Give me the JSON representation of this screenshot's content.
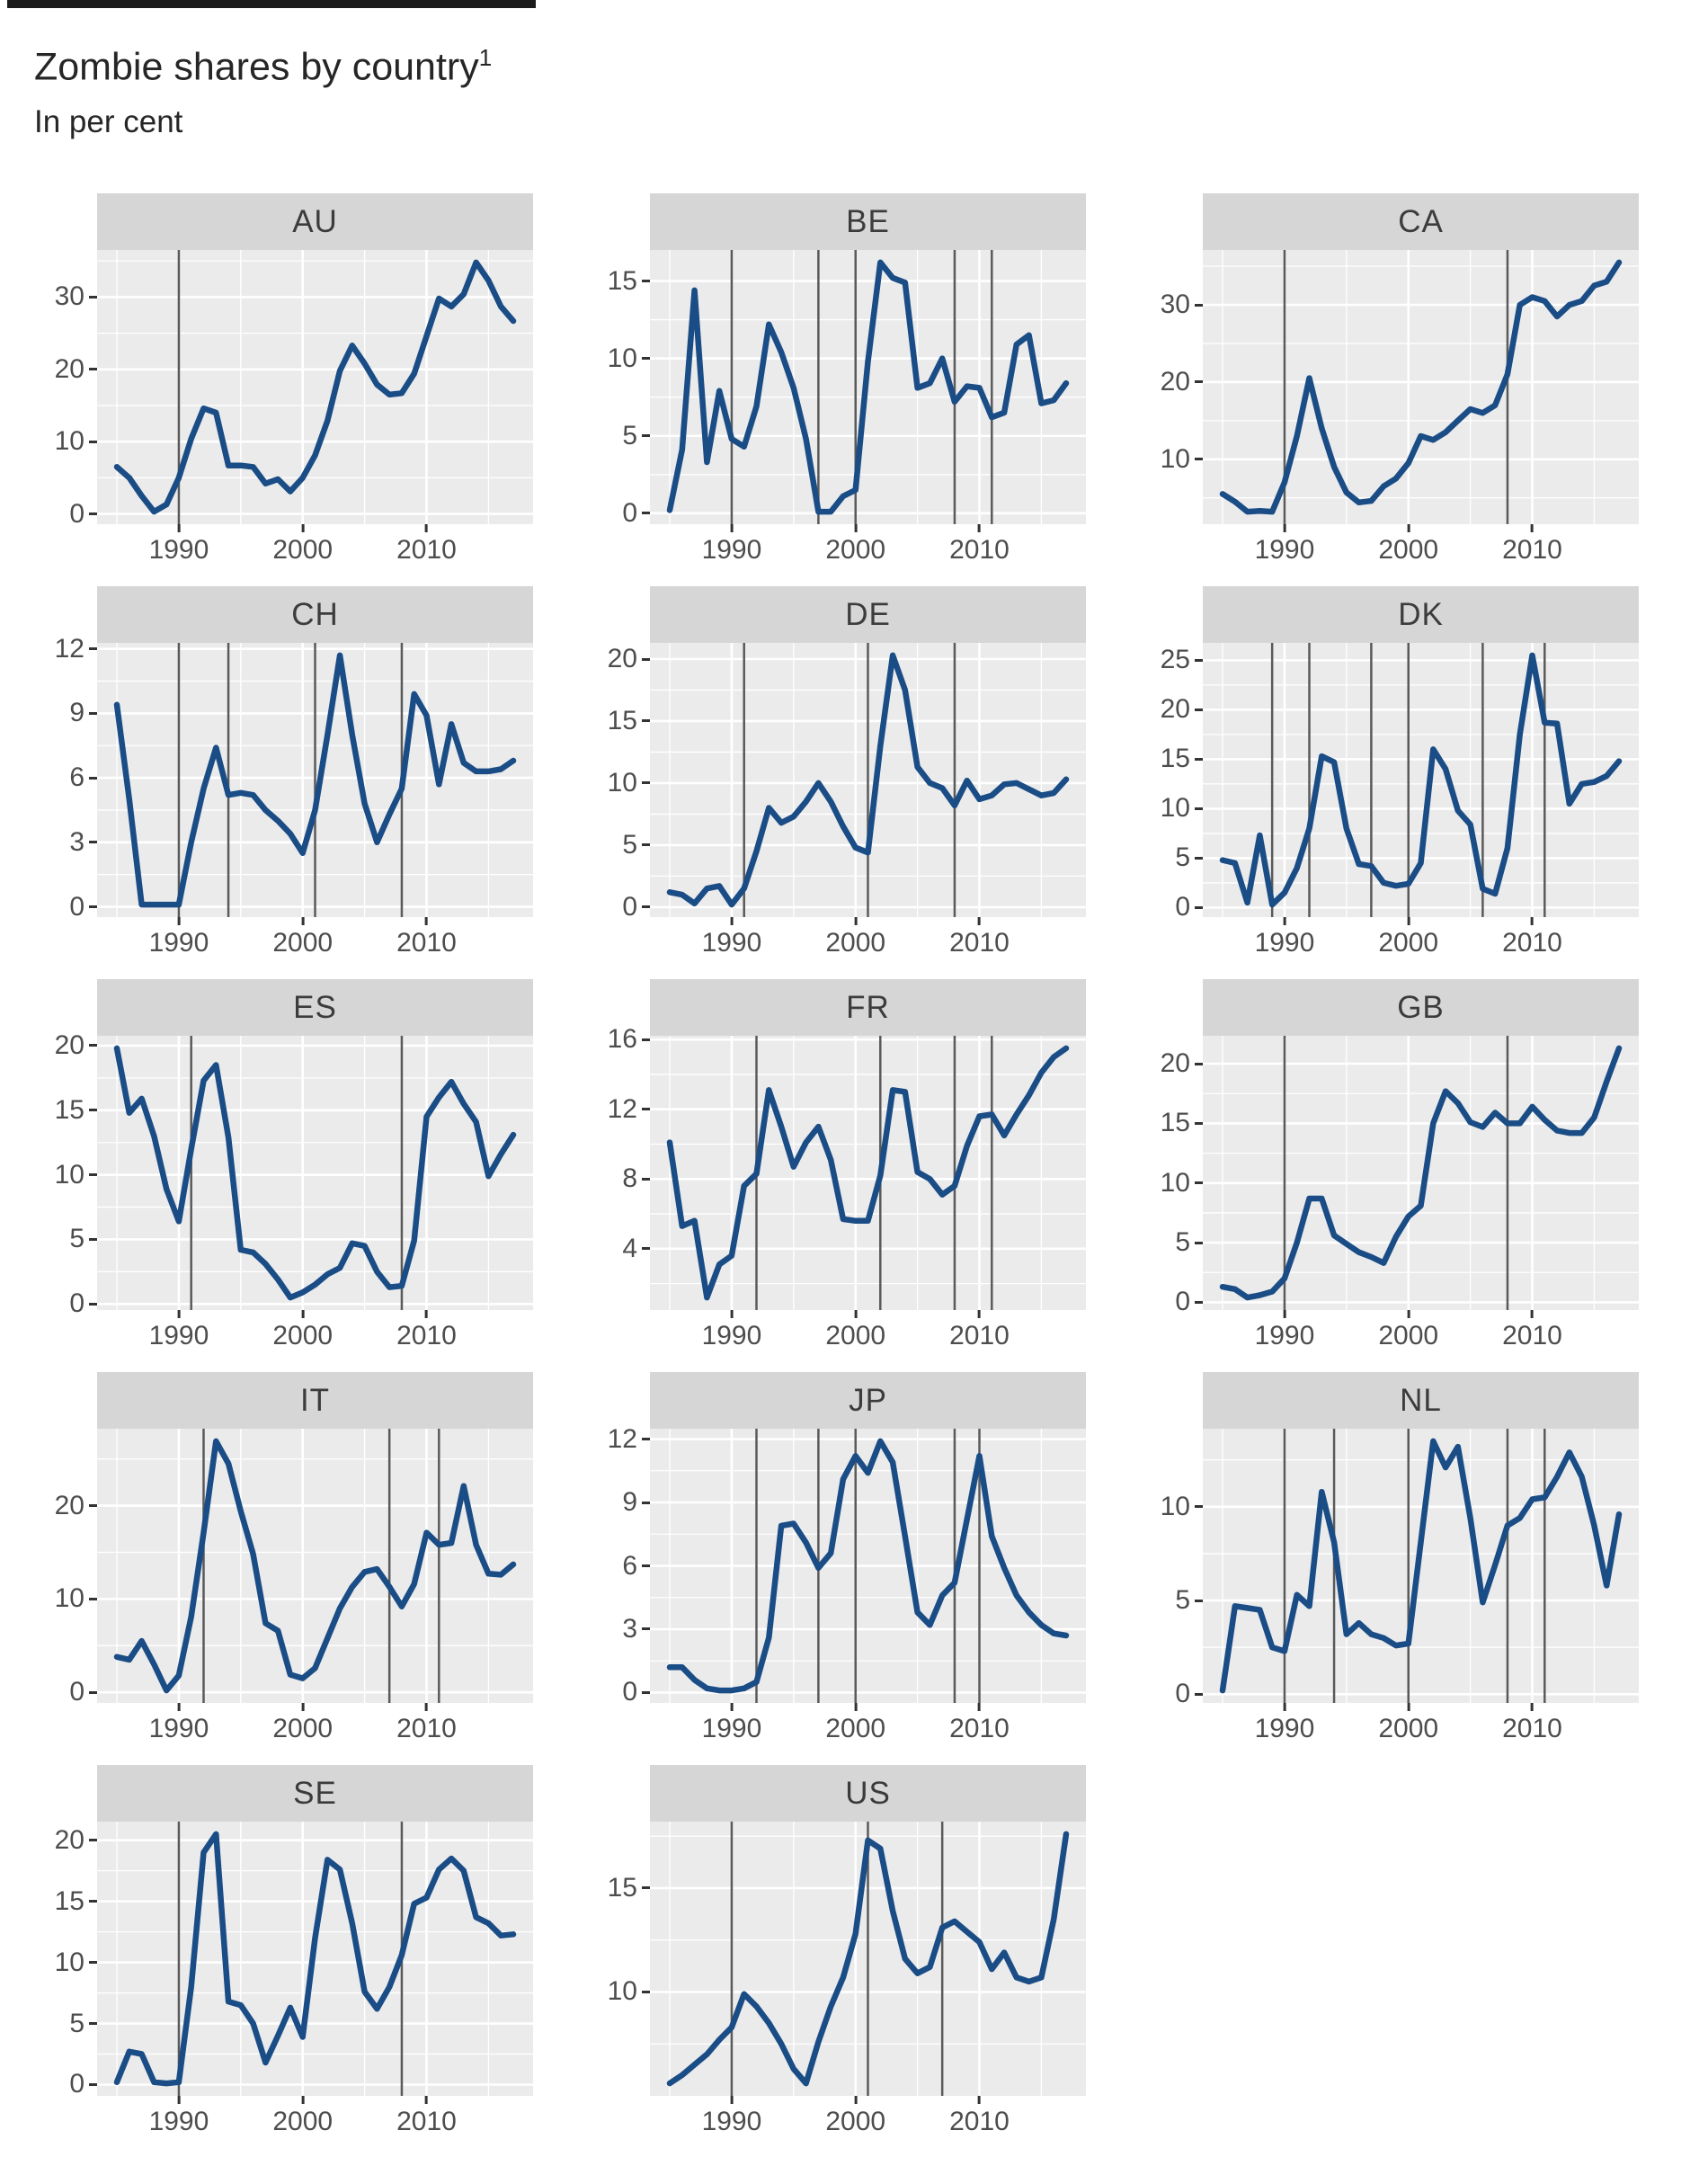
{
  "header": {
    "title": "Zombie shares by country",
    "footnote_marker": "1",
    "subtitle": "In per cent"
  },
  "style": {
    "line_color": "#1a4c86",
    "panel_bg": "#ebebeb",
    "strip_bg": "#d6d6d6",
    "grid_color": "#ffffff",
    "refline_color": "#5a5a5a",
    "tick_text_color": "#4d4d4d"
  },
  "axes": {
    "x_domain": [
      1985,
      2017
    ],
    "x_ticks": [
      1990,
      2000,
      2010
    ],
    "x_minor": [
      1985,
      1995,
      2005,
      2015
    ],
    "expansion": 0.05
  },
  "chart_data": [
    {
      "type": "line",
      "title": "AU",
      "x_start": 1985,
      "x_end": 2017,
      "y_ticks": [
        0,
        10,
        20,
        30
      ],
      "vlines": [
        1990
      ],
      "values": [
        6.5,
        5,
        2.5,
        0.3,
        1.3,
        5,
        10.4,
        14.6,
        14,
        6.7,
        6.7,
        6.5,
        4.2,
        4.8,
        3.1,
        5,
        8.1,
        12.9,
        19.8,
        23.3,
        20.8,
        17.9,
        16.5,
        16.7,
        19.4,
        24.6,
        29.8,
        28.7,
        30.4,
        34.8,
        32.3,
        28.7,
        26.7
      ]
    },
    {
      "type": "line",
      "title": "BE",
      "x_start": 1985,
      "x_end": 2017,
      "y_ticks": [
        0,
        5,
        10,
        15
      ],
      "vlines": [
        1990,
        1997,
        2000,
        2008,
        2011
      ],
      "values": [
        0.2,
        4.1,
        14.4,
        3.3,
        7.9,
        4.8,
        4.3,
        6.9,
        12.2,
        10.4,
        8.1,
        4.8,
        0.1,
        0.1,
        1.1,
        1.5,
        9.8,
        16.2,
        15.2,
        14.9,
        8.1,
        8.4,
        10,
        7.2,
        8.2,
        8.1,
        6.2,
        6.5,
        10.9,
        11.5,
        7.1,
        7.3,
        8.4
      ]
    },
    {
      "type": "line",
      "title": "CA",
      "x_start": 1985,
      "x_end": 2017,
      "y_ticks": [
        10,
        20,
        30
      ],
      "vlines": [
        1990,
        2008
      ],
      "values": [
        5.5,
        4.5,
        3.2,
        3.3,
        3.2,
        7,
        13,
        20.5,
        14,
        9,
        5.7,
        4.4,
        4.6,
        6.5,
        7.5,
        9.5,
        13,
        12.5,
        13.5,
        15,
        16.5,
        16,
        17,
        21,
        30,
        31,
        30.5,
        28.5,
        30,
        30.5,
        32.5,
        33,
        35.5
      ]
    },
    {
      "type": "line",
      "title": "CH",
      "x_start": 1985,
      "x_end": 2017,
      "y_ticks": [
        0,
        3,
        6,
        9,
        12
      ],
      "vlines": [
        1990,
        1994,
        2001,
        2008
      ],
      "values": [
        9.4,
        5,
        0.1,
        0.1,
        0.1,
        0.1,
        3,
        5.5,
        7.4,
        5.2,
        5.3,
        5.2,
        4.5,
        4,
        3.4,
        2.5,
        4.5,
        8,
        11.7,
        8,
        4.8,
        3,
        4.3,
        5.5,
        9.9,
        8.9,
        5.7,
        8.5,
        6.7,
        6.3,
        6.3,
        6.4,
        6.8
      ]
    },
    {
      "type": "line",
      "title": "DE",
      "x_start": 1985,
      "x_end": 2017,
      "y_ticks": [
        0,
        5,
        10,
        15,
        20
      ],
      "vlines": [
        1991,
        2001,
        2008
      ],
      "values": [
        1.2,
        1,
        0.3,
        1.5,
        1.7,
        0.2,
        1.5,
        4.5,
        8,
        6.8,
        7.3,
        8.5,
        10,
        8.5,
        6.5,
        4.8,
        4.4,
        13,
        20.3,
        17.5,
        11.3,
        10,
        9.6,
        8.2,
        10.2,
        8.7,
        9,
        9.9,
        10,
        9.5,
        9,
        9.2,
        10.3
      ]
    },
    {
      "type": "line",
      "title": "DK",
      "x_start": 1985,
      "x_end": 2017,
      "y_ticks": [
        0,
        5,
        10,
        15,
        20,
        25
      ],
      "vlines": [
        1989,
        1992,
        1997,
        2000,
        2006,
        2011
      ],
      "values": [
        4.8,
        4.5,
        0.5,
        7.3,
        0.3,
        1.5,
        4,
        8,
        15.3,
        14.7,
        8,
        4.4,
        4.2,
        2.5,
        2.2,
        2.4,
        4.5,
        16,
        14,
        9.8,
        8.4,
        1.9,
        1.4,
        6,
        17.5,
        25.5,
        18.7,
        18.6,
        10.5,
        12.5,
        12.7,
        13.3,
        14.8
      ]
    },
    {
      "type": "line",
      "title": "ES",
      "x_start": 1985,
      "x_end": 2017,
      "y_ticks": [
        0,
        5,
        10,
        15,
        20
      ],
      "vlines": [
        1991,
        2008
      ],
      "values": [
        19.8,
        14.8,
        15.9,
        13,
        8.9,
        6.4,
        12,
        17.3,
        18.5,
        12.9,
        4.2,
        4,
        3.1,
        1.9,
        0.5,
        0.9,
        1.5,
        2.3,
        2.8,
        4.7,
        4.5,
        2.5,
        1.3,
        1.4,
        4.9,
        14.5,
        16,
        17.2,
        15.5,
        14.1,
        9.9,
        11.6,
        13.1
      ]
    },
    {
      "type": "line",
      "title": "FR",
      "x_start": 1985,
      "x_end": 2017,
      "y_ticks": [
        4,
        8,
        12,
        16
      ],
      "vlines": [
        1992,
        2002,
        2008,
        2011
      ],
      "values": [
        10.1,
        5.3,
        5.6,
        1.2,
        3.1,
        3.6,
        7.6,
        8.3,
        13.1,
        11,
        8.7,
        10.1,
        11,
        9.1,
        5.7,
        5.6,
        5.6,
        8.2,
        13.1,
        13,
        8.4,
        8,
        7.1,
        7.6,
        9.9,
        11.6,
        11.7,
        10.5,
        11.7,
        12.8,
        14.1,
        15,
        15.5
      ]
    },
    {
      "type": "line",
      "title": "GB",
      "x_start": 1985,
      "x_end": 2017,
      "y_ticks": [
        0,
        5,
        10,
        15,
        20
      ],
      "vlines": [
        1990,
        2008
      ],
      "values": [
        1.3,
        1.1,
        0.4,
        0.6,
        0.9,
        2,
        5,
        8.7,
        8.7,
        5.6,
        4.9,
        4.2,
        3.8,
        3.3,
        5.5,
        7.2,
        8.1,
        15,
        17.7,
        16.7,
        15.1,
        14.7,
        15.9,
        15,
        15,
        16.4,
        15.3,
        14.4,
        14.2,
        14.2,
        15.5,
        18.5,
        21.3
      ]
    },
    {
      "type": "line",
      "title": "IT",
      "x_start": 1985,
      "x_end": 2017,
      "y_ticks": [
        0,
        10,
        20
      ],
      "vlines": [
        1992,
        2007,
        2011
      ],
      "values": [
        3.8,
        3.5,
        5.5,
        3,
        0.2,
        1.8,
        8.1,
        17.1,
        26.9,
        24.5,
        19.4,
        14.8,
        7.4,
        6.6,
        1.9,
        1.5,
        2.6,
        5.8,
        9,
        11.3,
        12.9,
        13.2,
        11.3,
        9.2,
        11.6,
        17.1,
        15.8,
        16,
        22.1,
        15.8,
        12.7,
        12.6,
        13.7
      ]
    },
    {
      "type": "line",
      "title": "JP",
      "x_start": 1985,
      "x_end": 2017,
      "y_ticks": [
        0,
        3,
        6,
        9,
        12
      ],
      "vlines": [
        1992,
        1997,
        2000,
        2008,
        2010
      ],
      "values": [
        1.2,
        1.2,
        0.6,
        0.2,
        0.1,
        0.1,
        0.2,
        0.5,
        2.6,
        7.9,
        8,
        7.1,
        5.9,
        6.6,
        10.1,
        11.2,
        10.4,
        11.9,
        10.9,
        7.4,
        3.8,
        3.2,
        4.6,
        5.2,
        8.2,
        11.2,
        7.4,
        5.9,
        4.6,
        3.8,
        3.2,
        2.8,
        2.7
      ]
    },
    {
      "type": "line",
      "title": "NL",
      "x_start": 1985,
      "x_end": 2017,
      "y_ticks": [
        0,
        5,
        10
      ],
      "vlines": [
        1990,
        1994,
        2000,
        2008,
        2011
      ],
      "values": [
        0.2,
        4.7,
        4.6,
        4.5,
        2.5,
        2.3,
        5.3,
        4.7,
        10.8,
        8.1,
        3.2,
        3.8,
        3.2,
        3,
        2.6,
        2.7,
        8.1,
        13.5,
        12.1,
        13.2,
        9.4,
        4.9,
        6.9,
        9,
        9.4,
        10.4,
        10.5,
        11.6,
        12.9,
        11.6,
        9,
        5.8,
        9.6
      ]
    },
    {
      "type": "line",
      "title": "SE",
      "x_start": 1985,
      "x_end": 2017,
      "y_ticks": [
        0,
        5,
        10,
        15,
        20
      ],
      "vlines": [
        1990,
        2008
      ],
      "values": [
        0.2,
        2.7,
        2.5,
        0.2,
        0.1,
        0.2,
        8,
        19,
        20.5,
        6.8,
        6.5,
        5,
        1.8,
        4,
        6.3,
        3.9,
        12,
        18.4,
        17.6,
        13.2,
        7.6,
        6.2,
        8,
        10.6,
        14.8,
        15.3,
        17.6,
        18.5,
        17.5,
        13.7,
        13.2,
        12.2,
        12.3
      ]
    },
    {
      "type": "line",
      "title": "US",
      "x_start": 1985,
      "x_end": 2017,
      "y_ticks": [
        5,
        10,
        15
      ],
      "vlines": [
        1990,
        2001,
        2007
      ],
      "values": [
        5.6,
        6,
        6.5,
        7,
        7.7,
        8.3,
        9.9,
        9.3,
        8.5,
        7.5,
        6.3,
        5.6,
        7.6,
        9.3,
        10.7,
        12.8,
        17.3,
        16.9,
        13.9,
        11.6,
        10.9,
        11.2,
        13.1,
        13.4,
        12.9,
        12.4,
        11.1,
        11.9,
        10.7,
        10.5,
        10.7,
        13.5,
        17.6
      ]
    }
  ]
}
